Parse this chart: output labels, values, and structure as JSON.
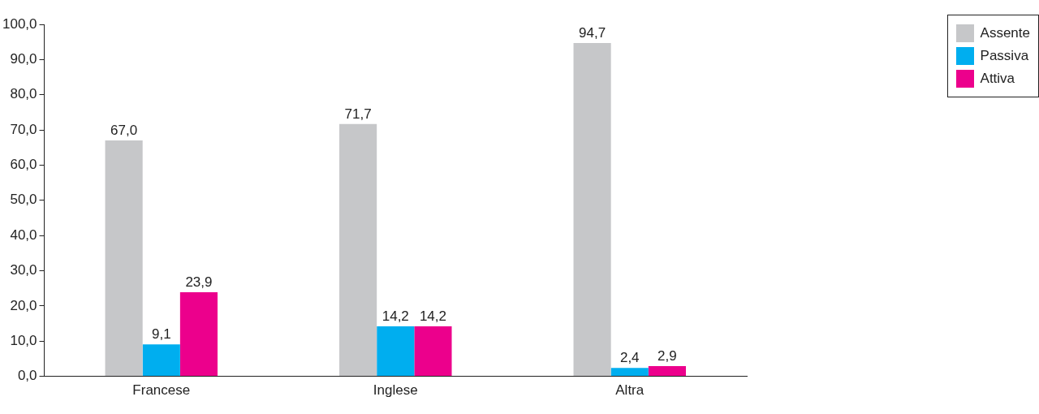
{
  "chart_data": {
    "type": "bar",
    "categories": [
      "Francese",
      "Inglese",
      "Altra"
    ],
    "series": [
      {
        "name": "Assente",
        "color": "#c6c7c9",
        "values": [
          67.0,
          71.7,
          94.7
        ],
        "value_labels": [
          "67,0",
          "71,7",
          "94,7"
        ]
      },
      {
        "name": "Passiva",
        "color": "#00aeef",
        "values": [
          9.1,
          14.2,
          2.4
        ],
        "value_labels": [
          "9,1",
          "14,2",
          "2,4"
        ]
      },
      {
        "name": "Attiva",
        "color": "#ec008c",
        "values": [
          23.9,
          14.2,
          2.9
        ],
        "value_labels": [
          "23,9",
          "14,2",
          "2,9"
        ]
      }
    ],
    "ylim": [
      0,
      100
    ],
    "yticks": [
      {
        "value": 0,
        "label": "0,0"
      },
      {
        "value": 10,
        "label": "10,0"
      },
      {
        "value": 20,
        "label": "20,0"
      },
      {
        "value": 30,
        "label": "30,0"
      },
      {
        "value": 40,
        "label": "40,0"
      },
      {
        "value": 50,
        "label": "50,0"
      },
      {
        "value": 60,
        "label": "60,0"
      },
      {
        "value": 70,
        "label": "70,0"
      },
      {
        "value": 80,
        "label": "80,0"
      },
      {
        "value": 90,
        "label": "90,0"
      },
      {
        "value": 100,
        "label": "100,0"
      }
    ],
    "grid": false,
    "legend": "top right"
  }
}
